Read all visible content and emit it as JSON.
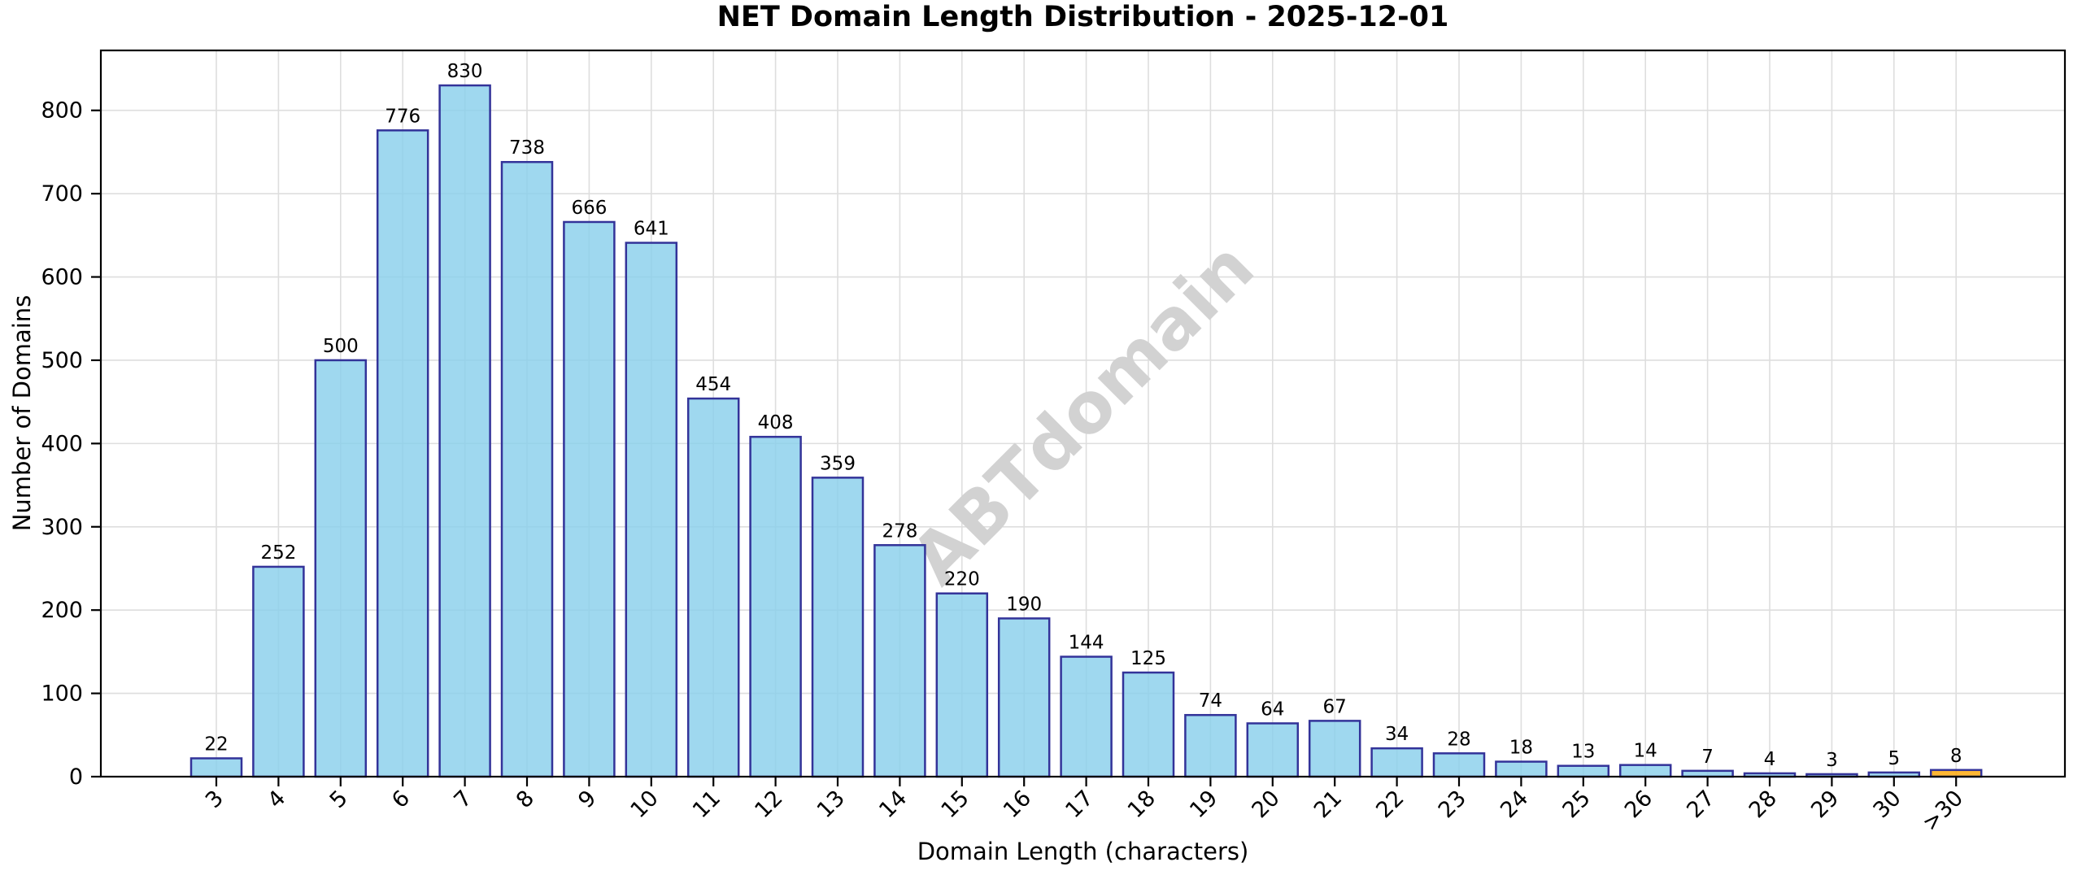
{
  "chart_data": {
    "type": "bar",
    "title": "NET Domain Length Distribution - 2025-12-01",
    "xlabel": "Domain Length (characters)",
    "ylabel": "Number of Domains",
    "categories": [
      "3",
      "4",
      "5",
      "6",
      "7",
      "8",
      "9",
      "10",
      "11",
      "12",
      "13",
      "14",
      "15",
      "16",
      "17",
      "18",
      "19",
      "20",
      "21",
      "22",
      "23",
      "24",
      "25",
      "26",
      "27",
      "28",
      "29",
      "30",
      ">30"
    ],
    "values": [
      22,
      252,
      500,
      776,
      830,
      738,
      666,
      641,
      454,
      408,
      359,
      278,
      220,
      190,
      144,
      125,
      74,
      64,
      67,
      34,
      28,
      18,
      13,
      14,
      7,
      4,
      3,
      5,
      8
    ],
    "yticks": [
      0,
      100,
      200,
      300,
      400,
      500,
      600,
      700,
      800
    ],
    "ylim": [
      0,
      872
    ],
    "grid": true,
    "legend": "none",
    "bar_fill": "#87CEEB",
    "bar_fill_opacity": 0.8,
    "bar_edge": "#333399",
    "highlight_index": 28,
    "highlight_fill": "#FFA500",
    "watermark": "ABTdomain",
    "watermark_color": "#D2D2D2",
    "grid_color": "#DEDEDE",
    "axis_color": "#000000"
  }
}
